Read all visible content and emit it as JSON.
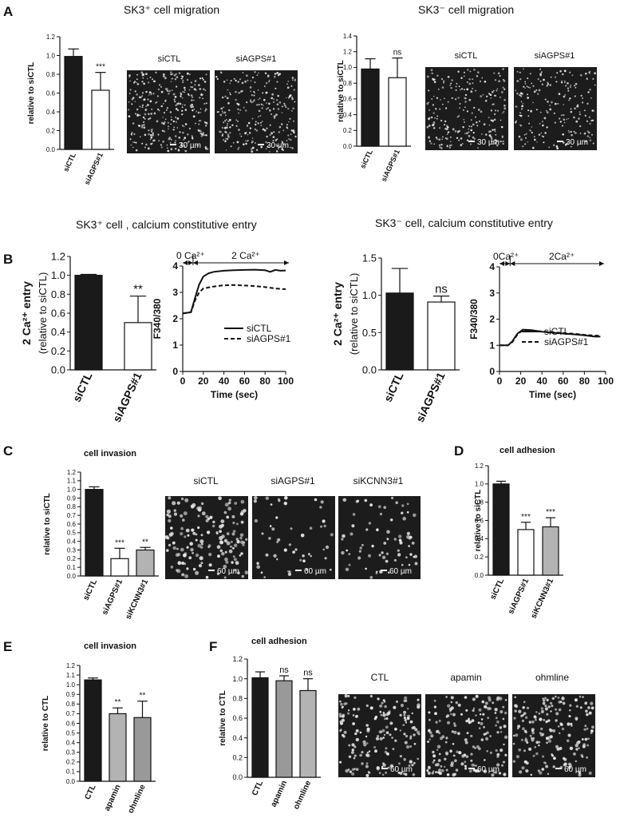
{
  "panel_letters": [
    "A",
    "B",
    "C",
    "D",
    "E",
    "F"
  ],
  "titles": {
    "a_left": "SK3⁺ cell migration",
    "a_right": "SK3⁻ cell migration",
    "b_left": "SK3⁺ cell , calcium constitutive entry",
    "b_right": "SK3⁻ cell, calcium constitutive entry",
    "c": "cell invasion",
    "d": "cell adhesion",
    "e": "cell invasion",
    "f": "cell adhesion"
  },
  "image_labels": {
    "a_left": [
      "siCTL",
      "siAGPS#1"
    ],
    "a_right": [
      "siCTL",
      "siAGPS#1"
    ],
    "c": [
      "siCTL",
      "siAGPS#1",
      "siKCNN3#1"
    ],
    "f": [
      "CTL",
      "apamin",
      "ohmline"
    ]
  },
  "scale_bars": {
    "a": "30 µm",
    "c": "60 µm",
    "f": "60 µm"
  },
  "colors": {
    "black": "#1a1a1a",
    "white": "#ffffff",
    "light_grey": "#b3b3b3",
    "mid_grey": "#999999",
    "image_bg": "#1c1c1c",
    "cell": "#e6e6e6"
  },
  "chart_data": [
    {
      "id": "A1",
      "type": "bar",
      "ylabel": "relative to siCTL",
      "ylim": [
        0,
        1.2
      ],
      "yticks": [
        "0.0",
        "0.2",
        "0.4",
        "0.6",
        "0.8",
        "1.0",
        "1.2"
      ],
      "categories": [
        "siCTL",
        "siAGPS#1"
      ],
      "values": [
        0.99,
        0.63
      ],
      "errors": [
        0.08,
        0.19
      ],
      "colors": [
        "black",
        "white"
      ],
      "annotations": [
        "",
        "***"
      ]
    },
    {
      "id": "A2",
      "type": "bar",
      "ylabel": "relative to siCTL",
      "ylim": [
        0,
        1.4
      ],
      "yticks": [
        "0.0",
        "0.2",
        "0.4",
        "0.6",
        "0.8",
        "1.0",
        "1.2",
        "1.4"
      ],
      "categories": [
        "siCTL",
        "siAGPS#1"
      ],
      "values": [
        0.98,
        0.87
      ],
      "errors": [
        0.13,
        0.25
      ],
      "colors": [
        "black",
        "white"
      ],
      "annotations": [
        "",
        "ns"
      ]
    },
    {
      "id": "B1",
      "type": "bar",
      "ylabel": "2 Ca²⁺ entry",
      "ylabel2": "(relative to siCTL)",
      "ylim": [
        0,
        1.2
      ],
      "yticks": [
        "0.0",
        "0.2",
        "0.4",
        "0.6",
        "0.8",
        "1.0",
        "1.2"
      ],
      "categories": [
        "siCTL",
        "siAGPS#1"
      ],
      "values": [
        1.0,
        0.5
      ],
      "errors": [
        0.01,
        0.28
      ],
      "colors": [
        "black",
        "white"
      ],
      "annotations": [
        "",
        "**"
      ]
    },
    {
      "id": "B2",
      "type": "line",
      "ylabel": "F340/380",
      "xlabel": "Time (sec)",
      "xlim": [
        0,
        100
      ],
      "ylim": [
        0,
        4
      ],
      "xticks": [
        "0",
        "20",
        "40",
        "60",
        "80",
        "100"
      ],
      "yticks": [
        "0",
        "1",
        "2",
        "3",
        "4"
      ],
      "phase1": "0 Ca²⁺",
      "phase2": "2 Ca²⁺",
      "phase_split": 10,
      "series": [
        {
          "name": "siCTL",
          "dash": false,
          "points": [
            [
              0,
              2.2
            ],
            [
              8,
              2.25
            ],
            [
              12,
              2.8
            ],
            [
              16,
              3.3
            ],
            [
              20,
              3.6
            ],
            [
              25,
              3.72
            ],
            [
              30,
              3.78
            ],
            [
              40,
              3.82
            ],
            [
              50,
              3.84
            ],
            [
              60,
              3.85
            ],
            [
              70,
              3.86
            ],
            [
              80,
              3.84
            ],
            [
              85,
              3.78
            ],
            [
              90,
              3.85
            ],
            [
              95,
              3.82
            ],
            [
              100,
              3.83
            ]
          ]
        },
        {
          "name": "siAGPS#1",
          "dash": true,
          "points": [
            [
              0,
              2.2
            ],
            [
              8,
              2.25
            ],
            [
              12,
              2.7
            ],
            [
              16,
              3.0
            ],
            [
              20,
              3.15
            ],
            [
              30,
              3.22
            ],
            [
              40,
              3.27
            ],
            [
              50,
              3.28
            ],
            [
              60,
              3.26
            ],
            [
              70,
              3.24
            ],
            [
              80,
              3.2
            ],
            [
              90,
              3.15
            ],
            [
              100,
              3.12
            ]
          ]
        }
      ]
    },
    {
      "id": "B3",
      "type": "bar",
      "ylabel": "2 Ca²⁺ entry",
      "ylabel2": "(relative to siCTL)",
      "ylim": [
        0,
        1.5
      ],
      "yticks": [
        "0.0",
        "0.5",
        "1.0",
        "1.5"
      ],
      "categories": [
        "siCTL",
        "siAGPS#1"
      ],
      "values": [
        1.03,
        0.91
      ],
      "errors": [
        0.33,
        0.08
      ],
      "colors": [
        "black",
        "white"
      ],
      "annotations": [
        "",
        "ns"
      ]
    },
    {
      "id": "B4",
      "type": "line",
      "ylabel": "F340/380",
      "xlabel": "Time (sec)",
      "xlim": [
        0,
        100
      ],
      "ylim": [
        0,
        4
      ],
      "xticks": [
        "0",
        "20",
        "40",
        "60",
        "80",
        "100"
      ],
      "yticks": [
        "0",
        "1",
        "2",
        "3",
        "4"
      ],
      "phase1": "0Ca²⁺",
      "phase2": "2Ca²⁺",
      "phase_split": 10,
      "series": [
        {
          "name": "siCTL",
          "dash": false,
          "points": [
            [
              0,
              1.0
            ],
            [
              8,
              1.0
            ],
            [
              12,
              1.15
            ],
            [
              17,
              1.45
            ],
            [
              22,
              1.6
            ],
            [
              30,
              1.58
            ],
            [
              40,
              1.52
            ],
            [
              50,
              1.48
            ],
            [
              60,
              1.45
            ],
            [
              70,
              1.42
            ],
            [
              80,
              1.38
            ],
            [
              90,
              1.33
            ],
            [
              95,
              1.33
            ]
          ]
        },
        {
          "name": "siAGPS#1",
          "dash": true,
          "points": [
            [
              0,
              1.0
            ],
            [
              8,
              1.0
            ],
            [
              12,
              1.12
            ],
            [
              17,
              1.42
            ],
            [
              22,
              1.58
            ],
            [
              30,
              1.57
            ],
            [
              40,
              1.53
            ],
            [
              50,
              1.5
            ],
            [
              60,
              1.47
            ],
            [
              70,
              1.44
            ],
            [
              80,
              1.4
            ],
            [
              90,
              1.37
            ],
            [
              95,
              1.37
            ]
          ]
        }
      ]
    },
    {
      "id": "C",
      "type": "bar",
      "ylabel": "relative to siCTL",
      "ylim": [
        0,
        1.2
      ],
      "yticks": [
        "0.0",
        "0.1",
        "0.2",
        "0.3",
        "0.4",
        "0.5",
        "0.6",
        "0.7",
        "0.8",
        "0.9",
        "1.0",
        "1.1",
        "1.2"
      ],
      "categories": [
        "siCTL",
        "siAGPS#1",
        "siKCNN3#1"
      ],
      "values": [
        1.0,
        0.2,
        0.3
      ],
      "errors": [
        0.03,
        0.12,
        0.03
      ],
      "colors": [
        "black",
        "white",
        "light_grey"
      ],
      "annotations": [
        "",
        "***",
        "**"
      ]
    },
    {
      "id": "D",
      "type": "bar",
      "ylabel": "relative to siCTL",
      "ylim": [
        0,
        1.2
      ],
      "yticks": [
        "0.0",
        "0.2",
        "0.4",
        "0.6",
        "0.8",
        "1.0",
        "1.2"
      ],
      "categories": [
        "siCTL",
        "siAGPS#1",
        "siKCNN3#1"
      ],
      "values": [
        1.0,
        0.5,
        0.53
      ],
      "errors": [
        0.03,
        0.08,
        0.1
      ],
      "colors": [
        "black",
        "white",
        "light_grey"
      ],
      "annotations": [
        "",
        "***",
        "***"
      ]
    },
    {
      "id": "E",
      "type": "bar",
      "ylabel": "relative to CTL",
      "ylim": [
        0,
        1.2
      ],
      "yticks": [
        "0.0",
        "0.1",
        "0.2",
        "0.3",
        "0.4",
        "0.5",
        "0.6",
        "0.7",
        "0.8",
        "0.9",
        "1.0",
        "1.1",
        "1.2"
      ],
      "categories": [
        "CTL",
        "apamin",
        "ohmline"
      ],
      "values": [
        1.05,
        0.7,
        0.66
      ],
      "errors": [
        0.02,
        0.06,
        0.17
      ],
      "colors": [
        "black",
        "light_grey",
        "mid_grey"
      ],
      "annotations": [
        "",
        "**",
        "**"
      ]
    },
    {
      "id": "F",
      "type": "bar",
      "ylabel": "relative to CTL",
      "ylim": [
        0,
        1.2
      ],
      "yticks": [
        "0.0",
        "0.2",
        "0.4",
        "0.6",
        "0.8",
        "1.0",
        "1.2"
      ],
      "categories": [
        "CTL",
        "apamin",
        "ohmline"
      ],
      "values": [
        1.01,
        0.98,
        0.88
      ],
      "errors": [
        0.06,
        0.05,
        0.12
      ],
      "colors": [
        "black",
        "mid_grey",
        "light_grey"
      ],
      "annotations": [
        "",
        "ns",
        "ns"
      ]
    }
  ]
}
